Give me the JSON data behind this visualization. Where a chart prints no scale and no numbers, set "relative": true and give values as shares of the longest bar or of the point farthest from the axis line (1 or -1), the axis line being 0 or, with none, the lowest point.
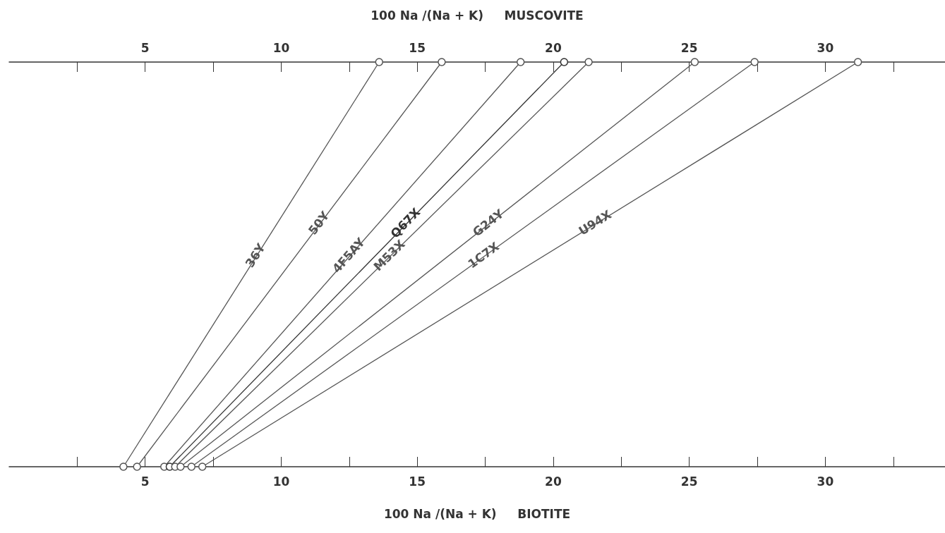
{
  "chart_data": {
    "type": "line",
    "relative": true,
    "tick_labels": "x",
    "marker": "circle",
    "line_style": "solid",
    "xlabel": "100 Na /(Na + K)     BIOTITE",
    "x2label": "100 Na /(Na + K)     MUSCOVITE",
    "xlim": [
      0,
      34.4
    ],
    "xticks": [
      {
        "value": 2.5,
        "label": null
      },
      5,
      {
        "value": 7.5,
        "label": null
      },
      10,
      {
        "value": 12.5,
        "label": null
      },
      15,
      {
        "value": 17.5,
        "label": null
      },
      20,
      {
        "value": 22.5,
        "label": null
      },
      25,
      {
        "value": 27.5,
        "label": null
      },
      30,
      {
        "value": 32.5,
        "label": null
      }
    ],
    "x2lim": [
      0,
      34.4
    ],
    "x2ticks": [
      {
        "value": 2.5,
        "label": null
      },
      5,
      {
        "value": 7.5,
        "label": null
      },
      10,
      {
        "value": 12.5,
        "label": null
      },
      15,
      {
        "value": 17.5,
        "label": null
      },
      20,
      {
        "value": 22.5,
        "label": null
      },
      25,
      {
        "value": 27.5,
        "label": null
      },
      30,
      {
        "value": 32.5,
        "label": null
      }
    ],
    "series": [
      {
        "name": "36Y",
        "color": "#555555",
        "x": [
          4.2,
          13.6
        ],
        "values": [
          0,
          1
        ]
      },
      {
        "name": "50Y",
        "color": "#555555",
        "x": [
          4.7,
          15.9
        ],
        "values": [
          0,
          1
        ]
      },
      {
        "name": "4F5AY",
        "color": "#555555",
        "x": [
          5.7,
          18.8
        ],
        "values": [
          0,
          1
        ]
      },
      {
        "name": "Q67X",
        "color": "#333333",
        "x": [
          5.9,
          20.4
        ],
        "values": [
          0,
          1
        ]
      },
      {
        "name": "M53X",
        "color": "#555555",
        "x": [
          6.1,
          21.3
        ],
        "values": [
          0,
          1
        ]
      },
      {
        "name": "G24Y",
        "color": "#555555",
        "x": [
          6.3,
          25.2
        ],
        "values": [
          0,
          1
        ]
      },
      {
        "name": "1C7X",
        "color": "#555555",
        "x": [
          6.7,
          27.4
        ],
        "values": [
          0,
          1
        ]
      },
      {
        "name": "U94X",
        "color": "#555555",
        "x": [
          7.1,
          31.2
        ],
        "values": [
          0,
          1
        ]
      }
    ]
  }
}
